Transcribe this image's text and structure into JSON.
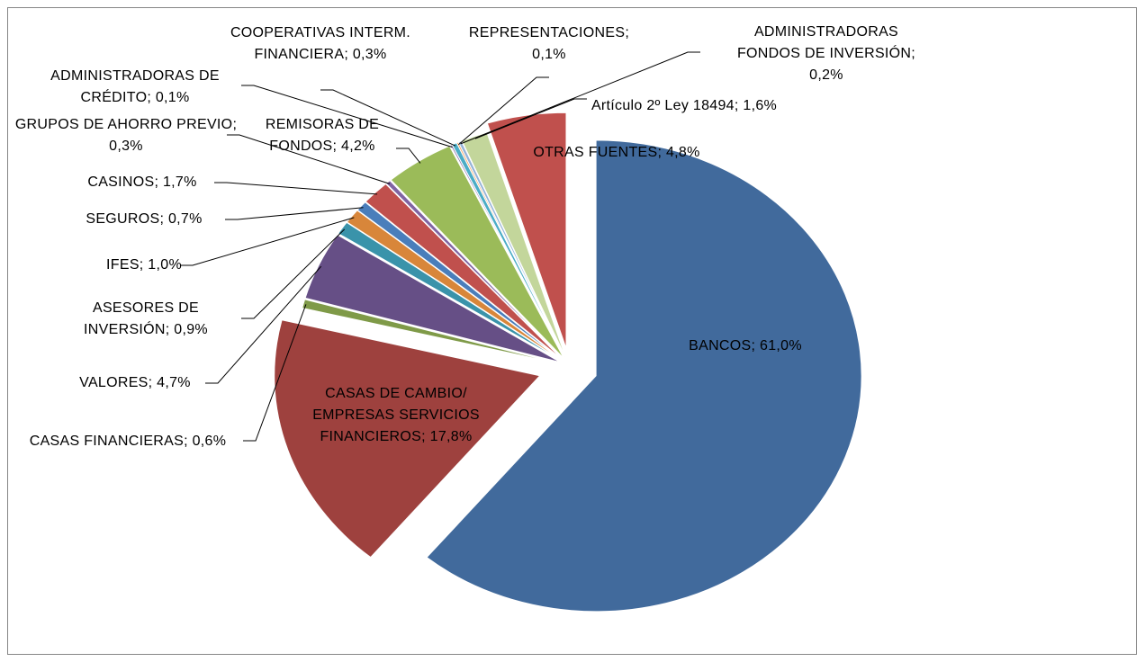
{
  "chart_data": {
    "type": "pie",
    "categories": [
      "BANCOS",
      "CASAS DE CAMBIO/ EMPRESAS SERVICIOS FINANCIEROS",
      "CASAS FINANCIERAS",
      "VALORES",
      "ASESORES DE INVERSIÓN",
      "IFES",
      "SEGUROS",
      "CASINOS",
      "GRUPOS DE AHORRO PREVIO",
      "REMISORAS DE FONDOS",
      "ADMINISTRADORAS DE CRÉDITO",
      "COOPERATIVAS INTERM. FINANCIERA",
      "REPRESENTACIONES",
      "ADMINISTRADORAS FONDOS DE INVERSIÓN",
      "Artículo 2º Ley 18494",
      "OTRAS FUENTES"
    ],
    "values": [
      61.0,
      17.8,
      0.6,
      4.7,
      0.9,
      1.0,
      0.7,
      1.7,
      0.3,
      4.2,
      0.1,
      0.3,
      0.1,
      0.2,
      1.6,
      4.8
    ],
    "value_labels": [
      "61,0%",
      "17,8%",
      "0,6%",
      "4,7%",
      "0,9%",
      "1,0%",
      "0,7%",
      "1,7%",
      "0,3%",
      "4,2%",
      "0,1%",
      "0,3%",
      "0,1%",
      "0,2%",
      "1,6%",
      "4,8%"
    ],
    "label_separator": "; ",
    "colors": [
      "#416a9c",
      "#9e413e",
      "#7f9a48",
      "#664f86",
      "#3a93aa",
      "#d8863a",
      "#4a7ebb",
      "#c0504d",
      "#8064a2",
      "#9bbb59",
      "#8064a2",
      "#4bacc6",
      "#f79646",
      "#95b3d7",
      "#c3d69b",
      "#c0504d"
    ]
  }
}
